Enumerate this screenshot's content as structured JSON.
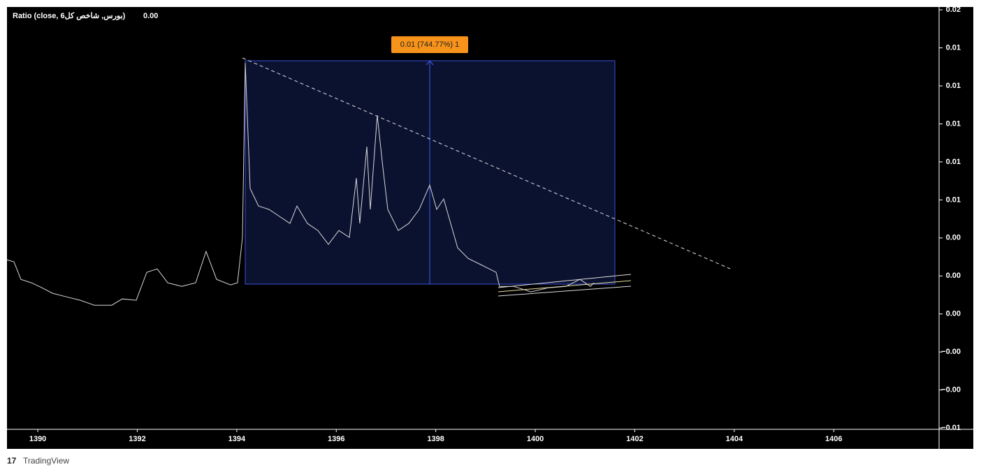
{
  "chart_data": {
    "type": "line",
    "title": "Ratio (close, بورس, شاخص کل6)",
    "last_value": "0.00",
    "annotation": "0.01 (744.77%) 1",
    "brand": "TradingView",
    "color": "#d8d8d8",
    "x": [
      1389.381,
      1389.521,
      1389.661,
      1389.872,
      1390.083,
      1390.293,
      1390.574,
      1390.855,
      1391.136,
      1391.487,
      1391.698,
      1391.979,
      1392.19,
      1392.4,
      1392.611,
      1392.892,
      1393.173,
      1393.383,
      1393.594,
      1393.875,
      1394.015,
      1394.114,
      1394.17,
      1394.268,
      1394.437,
      1394.648,
      1394.858,
      1395.069,
      1395.209,
      1395.42,
      1395.631,
      1395.841,
      1396.052,
      1396.263,
      1396.403,
      1396.473,
      1396.614,
      1396.684,
      1396.824,
      1396.937,
      1397.035,
      1397.246,
      1397.457,
      1397.667,
      1397.878,
      1398.018,
      1398.159,
      1398.299,
      1398.44,
      1398.65,
      1398.931,
      1399.212,
      1399.282,
      1399.563,
      1399.914,
      1400.265,
      1400.617,
      1400.897,
      1401.108,
      1401.178
    ],
    "values": [
      0.00285,
      0.00274,
      0.00182,
      0.00164,
      0.00138,
      0.00109,
      0.0009,
      0.00072,
      0.00046,
      0.00046,
      0.00079,
      0.00072,
      0.00219,
      0.00237,
      0.00164,
      0.00145,
      0.00164,
      0.00329,
      0.00182,
      0.00153,
      0.00164,
      0.00403,
      0.01321,
      0.0066,
      0.00568,
      0.0055,
      0.00513,
      0.00476,
      0.00568,
      0.00476,
      0.00439,
      0.00366,
      0.00439,
      0.00403,
      0.00715,
      0.00476,
      0.0088,
      0.0055,
      0.01045,
      0.0077,
      0.0055,
      0.00439,
      0.00476,
      0.0055,
      0.00678,
      0.0055,
      0.00605,
      0.00476,
      0.00348,
      0.00292,
      0.00256,
      0.00219,
      0.00145,
      0.00145,
      0.00116,
      0.00138,
      0.00145,
      0.00182,
      0.00145,
      0.00164
    ],
    "xlim": [
      1389.381,
      1408.117
    ],
    "xticks": [
      1390,
      1392,
      1394,
      1396,
      1398,
      1400,
      1402,
      1404,
      1406
    ],
    "ylim": [
      -0.00607,
      0.01615
    ],
    "yticks": [
      {
        "value": 0.016,
        "label": "0.02"
      },
      {
        "value": 0.014,
        "label": "0.01"
      },
      {
        "value": 0.012,
        "label": "0.01"
      },
      {
        "value": 0.01,
        "label": "0.01"
      },
      {
        "value": 0.008,
        "label": "0.01"
      },
      {
        "value": 0.006,
        "label": "0.01"
      },
      {
        "value": 0.004,
        "label": "0.00"
      },
      {
        "value": 0.002,
        "label": "0.00"
      },
      {
        "value": 0,
        "label": "0.00"
      },
      {
        "value": -0.002,
        "label": "−0.00"
      },
      {
        "value": -0.004,
        "label": "−0.00"
      },
      {
        "value": -0.006,
        "label": "−0.01"
      }
    ],
    "grid": false
  }
}
